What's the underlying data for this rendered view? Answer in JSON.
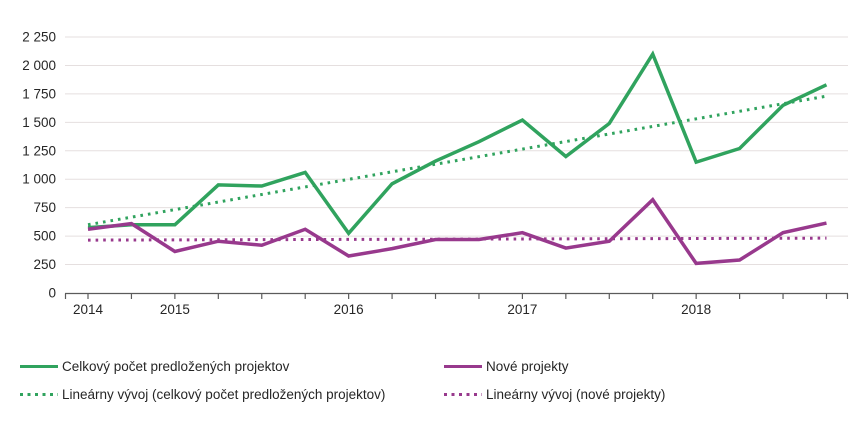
{
  "chart_data": {
    "type": "line",
    "title": "",
    "xlabel": "",
    "ylabel": "",
    "ylim": [
      0,
      2250
    ],
    "y_tick_step": 250,
    "grid": "horizontal-only",
    "legend_position": "bottom-left, two columns",
    "y_ticks": [
      {
        "value": 0,
        "label": "0"
      },
      {
        "value": 250,
        "label": "250"
      },
      {
        "value": 500,
        "label": "500"
      },
      {
        "value": 750,
        "label": "750"
      },
      {
        "value": 1000,
        "label": "1 000"
      },
      {
        "value": 1250,
        "label": "1 250"
      },
      {
        "value": 1500,
        "label": "1 500"
      },
      {
        "value": 1750,
        "label": "1 750"
      },
      {
        "value": 2000,
        "label": "2 000"
      },
      {
        "value": 2250,
        "label": "2 250"
      }
    ],
    "x": [
      "2014-Q3",
      "2014-Q4",
      "2015-Q1",
      "2015-Q2",
      "2015-Q3",
      "2015-Q4",
      "2016-Q1",
      "2016-Q2",
      "2016-Q3",
      "2016-Q4",
      "2017-Q1",
      "2017-Q2",
      "2017-Q3",
      "2017-Q4",
      "2018-Q1",
      "2018-Q2",
      "2018-Q3",
      "2018-Q4"
    ],
    "x_year_labels": [
      {
        "label": "2014",
        "point_index": 0
      },
      {
        "label": "2015",
        "point_index": 2
      },
      {
        "label": "2016",
        "point_index": 6
      },
      {
        "label": "2017",
        "point_index": 10
      },
      {
        "label": "2018",
        "point_index": 14
      }
    ],
    "series": [
      {
        "name": "Celkový počet predložených projektov",
        "style": "solid",
        "color": "#30A35E",
        "values": [
          575,
          600,
          600,
          950,
          940,
          1060,
          525,
          960,
          1160,
          1330,
          1520,
          1200,
          1490,
          2100,
          1150,
          1270,
          1650,
          1830
        ]
      },
      {
        "name": "Nové projekty",
        "style": "solid",
        "color": "#98398D",
        "values": [
          560,
          610,
          365,
          455,
          420,
          560,
          325,
          390,
          470,
          470,
          530,
          395,
          455,
          820,
          260,
          290,
          530,
          615
        ]
      },
      {
        "name": "Lineárny vývoj (celkový počet predložených projektov)",
        "style": "dotted",
        "color": "#30A35E",
        "trend": {
          "start": 600,
          "end": 1730
        }
      },
      {
        "name": "Lineárny vývoj (nové projekty)",
        "style": "dotted",
        "color": "#98398D",
        "trend": {
          "start": 465,
          "end": 482
        }
      }
    ]
  },
  "legend": {
    "items": [
      {
        "label": "Celkový počet predložených projektov",
        "color": "#30A35E",
        "style": "solid"
      },
      {
        "label": "Nové projekty",
        "color": "#98398D",
        "style": "solid"
      },
      {
        "label": "Lineárny vývoj (celkový počet predložených projektov)",
        "color": "#30A35E",
        "style": "dotted"
      },
      {
        "label": "Lineárny vývoj (nové projekty)",
        "color": "#98398D",
        "style": "dotted"
      }
    ]
  },
  "colors": {
    "background": "#ffffff",
    "gridline": "#E5DFDF",
    "axis_line": "#5B5B5B",
    "text": "#262626"
  }
}
